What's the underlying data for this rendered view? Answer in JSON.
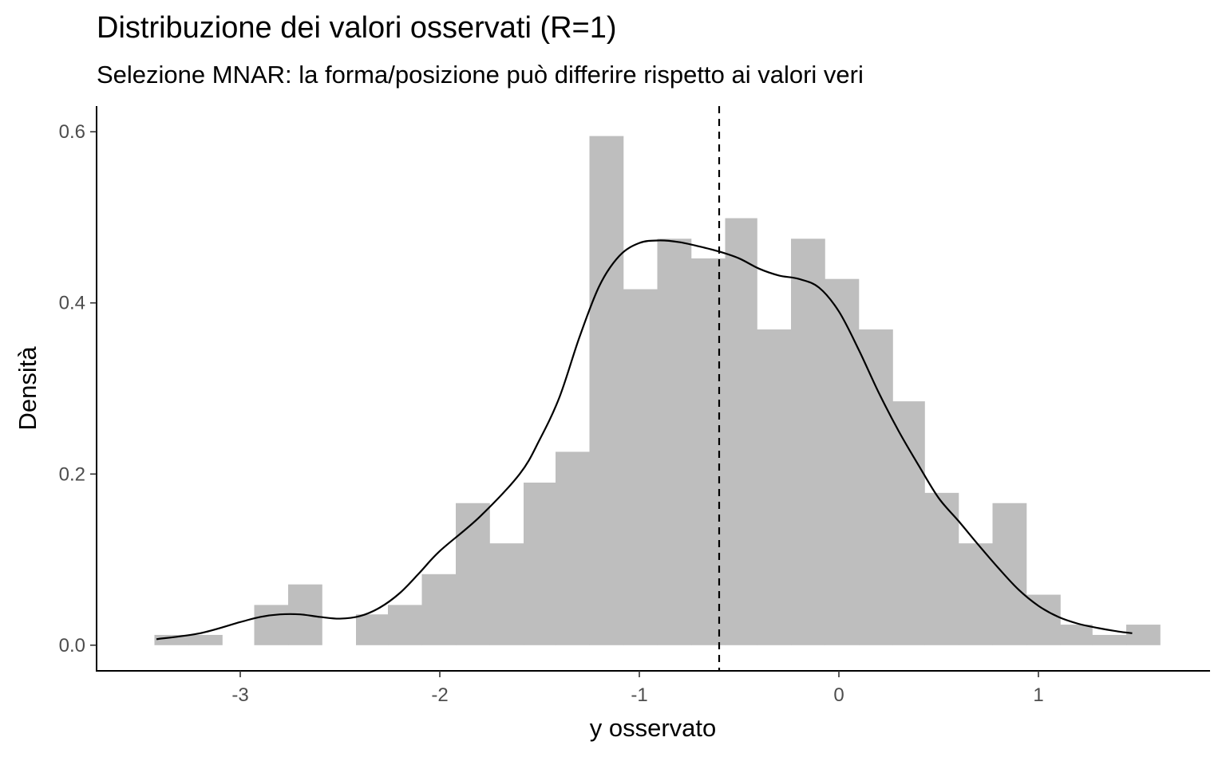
{
  "chart_data": {
    "type": "histogram",
    "title": "Distribuzione dei valori osservati (R=1)",
    "subtitle": "Selezione MNAR: la forma/posizione può differire rispetto ai valori veri",
    "xlabel": "y osservato",
    "ylabel": "Densità",
    "xlim": [
      -3.72,
      1.86
    ],
    "ylim": [
      -0.03,
      0.63
    ],
    "x_ticks": [
      -3,
      -2,
      -1,
      0,
      1
    ],
    "x_tick_labels": [
      "-3",
      "-2",
      "-1",
      "0",
      "1"
    ],
    "y_ticks": [
      0.0,
      0.2,
      0.4,
      0.6
    ],
    "y_tick_labels": [
      "0.0",
      "0.2",
      "0.4",
      "0.6"
    ],
    "grid": false,
    "bar_color": "#bebebe",
    "line_color": "#000000",
    "bins": [
      {
        "x0": -3.43,
        "x1": -3.26,
        "density": 0.012
      },
      {
        "x0": -3.26,
        "x1": -3.09,
        "density": 0.012
      },
      {
        "x0": -3.09,
        "x1": -2.93,
        "density": 0.0
      },
      {
        "x0": -2.93,
        "x1": -2.76,
        "density": 0.047
      },
      {
        "x0": -2.76,
        "x1": -2.59,
        "density": 0.071
      },
      {
        "x0": -2.59,
        "x1": -2.42,
        "density": 0.0
      },
      {
        "x0": -2.42,
        "x1": -2.26,
        "density": 0.036
      },
      {
        "x0": -2.26,
        "x1": -2.09,
        "density": 0.047
      },
      {
        "x0": -2.09,
        "x1": -1.92,
        "density": 0.083
      },
      {
        "x0": -1.92,
        "x1": -1.75,
        "density": 0.166
      },
      {
        "x0": -1.75,
        "x1": -1.58,
        "density": 0.119
      },
      {
        "x0": -1.58,
        "x1": -1.42,
        "density": 0.19
      },
      {
        "x0": -1.42,
        "x1": -1.25,
        "density": 0.226
      },
      {
        "x0": -1.25,
        "x1": -1.08,
        "density": 0.595
      },
      {
        "x0": -1.08,
        "x1": -0.91,
        "density": 0.416
      },
      {
        "x0": -0.91,
        "x1": -0.74,
        "density": 0.475
      },
      {
        "x0": -0.74,
        "x1": -0.57,
        "density": 0.452
      },
      {
        "x0": -0.57,
        "x1": -0.41,
        "density": 0.499
      },
      {
        "x0": -0.41,
        "x1": -0.24,
        "density": 0.369
      },
      {
        "x0": -0.24,
        "x1": -0.07,
        "density": 0.475
      },
      {
        "x0": -0.07,
        "x1": 0.1,
        "density": 0.428
      },
      {
        "x0": 0.1,
        "x1": 0.27,
        "density": 0.369
      },
      {
        "x0": 0.27,
        "x1": 0.43,
        "density": 0.285
      },
      {
        "x0": 0.43,
        "x1": 0.6,
        "density": 0.178
      },
      {
        "x0": 0.6,
        "x1": 0.77,
        "density": 0.119
      },
      {
        "x0": 0.77,
        "x1": 0.94,
        "density": 0.166
      },
      {
        "x0": 0.94,
        "x1": 1.11,
        "density": 0.059
      },
      {
        "x0": 1.11,
        "x1": 1.27,
        "density": 0.024
      },
      {
        "x0": 1.27,
        "x1": 1.44,
        "density": 0.012
      },
      {
        "x0": 1.44,
        "x1": 1.61,
        "density": 0.024
      }
    ],
    "density_curve": {
      "x": [
        -3.42,
        -3.2,
        -3.0,
        -2.9,
        -2.8,
        -2.7,
        -2.6,
        -2.5,
        -2.4,
        -2.3,
        -2.2,
        -2.1,
        -2.0,
        -1.8,
        -1.6,
        -1.5,
        -1.4,
        -1.3,
        -1.2,
        -1.1,
        -1.0,
        -0.9,
        -0.8,
        -0.7,
        -0.6,
        -0.5,
        -0.4,
        -0.3,
        -0.2,
        -0.1,
        0.0,
        0.1,
        0.2,
        0.3,
        0.4,
        0.5,
        0.6,
        0.7,
        0.8,
        0.9,
        1.0,
        1.1,
        1.2,
        1.3,
        1.4,
        1.47
      ],
      "y": [
        0.007,
        0.014,
        0.027,
        0.033,
        0.036,
        0.036,
        0.033,
        0.031,
        0.034,
        0.044,
        0.061,
        0.085,
        0.11,
        0.15,
        0.2,
        0.24,
        0.29,
        0.36,
        0.42,
        0.455,
        0.47,
        0.473,
        0.471,
        0.466,
        0.46,
        0.452,
        0.44,
        0.432,
        0.428,
        0.418,
        0.39,
        0.345,
        0.295,
        0.25,
        0.21,
        0.172,
        0.145,
        0.117,
        0.09,
        0.065,
        0.046,
        0.033,
        0.025,
        0.02,
        0.016,
        0.014
      ]
    },
    "vline": {
      "x": -0.6,
      "style": "dashed"
    }
  }
}
